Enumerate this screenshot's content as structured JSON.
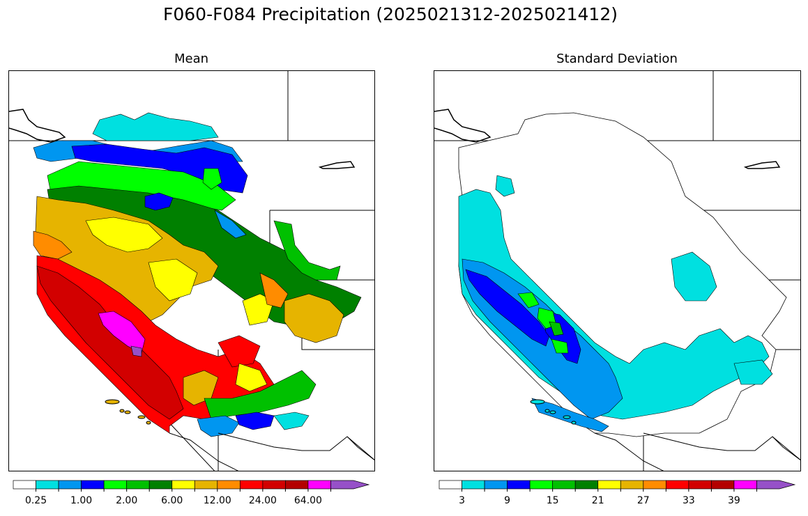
{
  "title": "F060-F084 Precipitation (2025021312-2025021412)",
  "panels": {
    "mean": {
      "title": "Mean",
      "colorbar": {
        "colors": [
          "#ffffff",
          "#00e0e0",
          "#0096f0",
          "#0000ff",
          "#00ff00",
          "#00c000",
          "#008000",
          "#ffff00",
          "#e6b400",
          "#ff8c00",
          "#ff0000",
          "#d20000",
          "#b40000",
          "#ff00ff",
          "#9650c8"
        ],
        "labels": [
          "0.25",
          "1.00",
          "2.00",
          "6.00",
          "12.00",
          "24.00",
          "64.00"
        ],
        "extend": "max"
      }
    },
    "stddev": {
      "title": "Standard Deviation",
      "colorbar": {
        "colors": [
          "#ffffff",
          "#00e0e0",
          "#0096f0",
          "#0000ff",
          "#00ff00",
          "#00c000",
          "#008000",
          "#ffff00",
          "#e6b400",
          "#ff8c00",
          "#ff0000",
          "#d20000",
          "#b40000",
          "#ff00ff",
          "#9650c8"
        ],
        "labels": [
          "3",
          "9",
          "15",
          "21",
          "27",
          "33",
          "39"
        ],
        "extend": "max"
      }
    }
  }
}
